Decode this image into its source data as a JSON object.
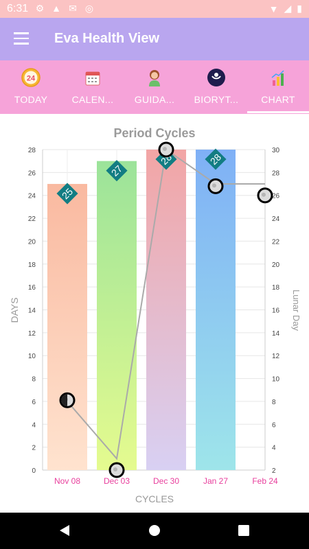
{
  "status": {
    "time": "6:31"
  },
  "app": {
    "title": "Eva Health View"
  },
  "tabs": [
    {
      "label": "TODAY",
      "icon": "calendar-24-icon"
    },
    {
      "label": "CALEN...",
      "icon": "calendar-icon"
    },
    {
      "label": "GUIDA...",
      "icon": "woman-icon"
    },
    {
      "label": "BIORYT...",
      "icon": "moon-icon"
    },
    {
      "label": "CHART",
      "icon": "bar-chart-icon"
    }
  ],
  "active_tab": "CHART",
  "chart_data": {
    "type": "bar",
    "title": "Period Cycles",
    "xlabel": "CYCLES",
    "ylabel": "DAYS",
    "y2label": "Lunar Day",
    "categories": [
      "Nov 08",
      "Dec 03",
      "Dec 30",
      "Jan 27",
      "Feb 24"
    ],
    "ylim": [
      0,
      28
    ],
    "y2lim": [
      2,
      30
    ],
    "yticks": [
      "0",
      "2",
      "4",
      "6",
      "8",
      "10",
      "12",
      "14",
      "16",
      "18",
      "20",
      "22",
      "24",
      "26",
      "28"
    ],
    "y2ticks": [
      "2",
      "4",
      "6",
      "8",
      "10",
      "12",
      "14",
      "16",
      "18",
      "20",
      "22",
      "24",
      "26",
      "28",
      "30"
    ],
    "series": [
      {
        "type": "bar",
        "values": [
          25,
          27,
          28,
          28,
          null
        ],
        "labels": [
          "25",
          "27",
          "28",
          "28",
          ""
        ]
      },
      {
        "type": "line",
        "values": [
          8,
          3,
          30,
          27,
          27
        ]
      }
    ],
    "moon_markers": [
      8.1,
      2.0,
      30.0,
      26.8,
      26.0
    ],
    "grid": true,
    "colors": {
      "bar_top": [
        "#f9b9a0",
        "#9be39a",
        "#f2a5a5",
        "#7fb0f6"
      ],
      "bar_bottom": [
        "#ffe3cf",
        "#e5fb8f",
        "#d8d0f3",
        "#9ee5ea"
      ],
      "label_bg": "#127d83",
      "line": "#aaaaaa",
      "axis_label": "#999999",
      "cat_label": "#e83e9c"
    }
  }
}
